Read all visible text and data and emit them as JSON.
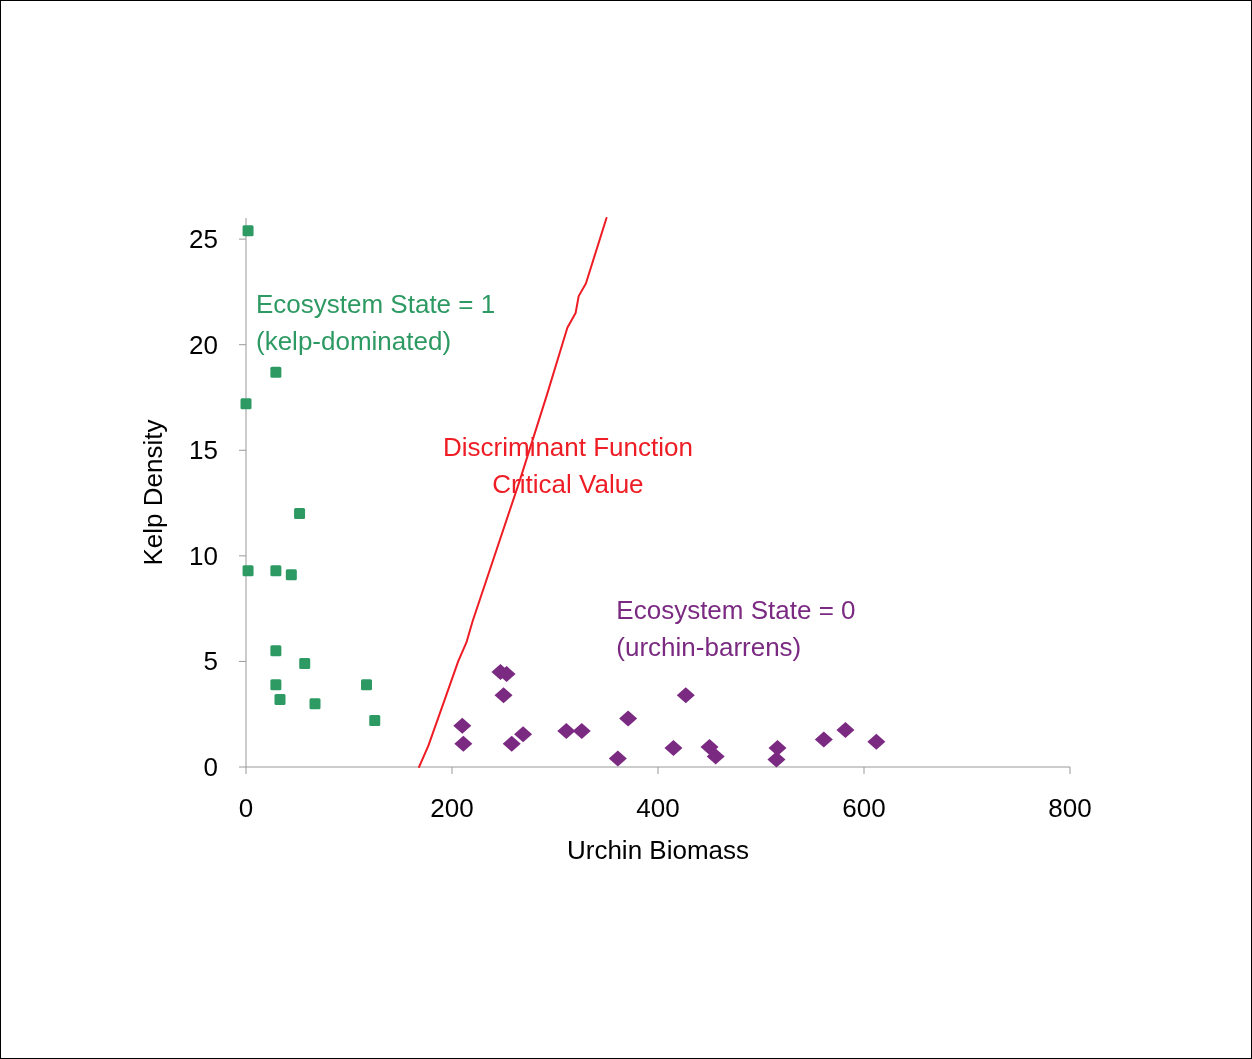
{
  "chart_data": {
    "type": "scatter",
    "xlabel": "Urchin Biomass",
    "ylabel": "Kelp Density",
    "xlim": [
      0,
      800
    ],
    "ylim": [
      0,
      26
    ],
    "xticks": [
      0,
      200,
      400,
      600,
      800
    ],
    "yticks": [
      0,
      5,
      10,
      15,
      20,
      25
    ],
    "grid": false,
    "legend": false,
    "series": [
      {
        "name": "Ecosystem State = 1\n(kelp-dominated)",
        "marker": "square",
        "color": "#2e9a63",
        "x": [
          2,
          29,
          0,
          52,
          2,
          29,
          44,
          29,
          57,
          29,
          117,
          33,
          67,
          125
        ],
        "values": [
          25.4,
          18.7,
          17.2,
          12.0,
          9.3,
          9.3,
          9.1,
          5.5,
          4.9,
          3.9,
          3.9,
          3.2,
          3.0,
          2.2
        ]
      },
      {
        "name": "Ecosystem State = 0\n(urchin-barrens)",
        "marker": "diamond",
        "color": "#7b2a82",
        "x": [
          247,
          253,
          250,
          210,
          211,
          258,
          269,
          311,
          326,
          371,
          361,
          427,
          415,
          450,
          456,
          516,
          515,
          561,
          582,
          612
        ],
        "values": [
          4.5,
          4.4,
          3.4,
          1.95,
          1.1,
          1.1,
          1.55,
          1.7,
          1.7,
          2.3,
          0.4,
          3.4,
          0.9,
          0.95,
          0.5,
          0.9,
          0.35,
          1.3,
          1.75,
          1.2
        ]
      },
      {
        "name": "Discriminant Function\nCritical Value",
        "type": "line",
        "marker": "none",
        "line_style": "solid",
        "color": "#ee1c24",
        "x": [
          168,
          177,
          193,
          206,
          214,
          220,
          266,
          292,
          312,
          320,
          323,
          330,
          350
        ],
        "values": [
          0,
          1.0,
          3.2,
          5.0,
          5.9,
          6.9,
          13.6,
          17.6,
          20.8,
          21.5,
          22.3,
          22.9,
          26.0
        ]
      }
    ]
  }
}
